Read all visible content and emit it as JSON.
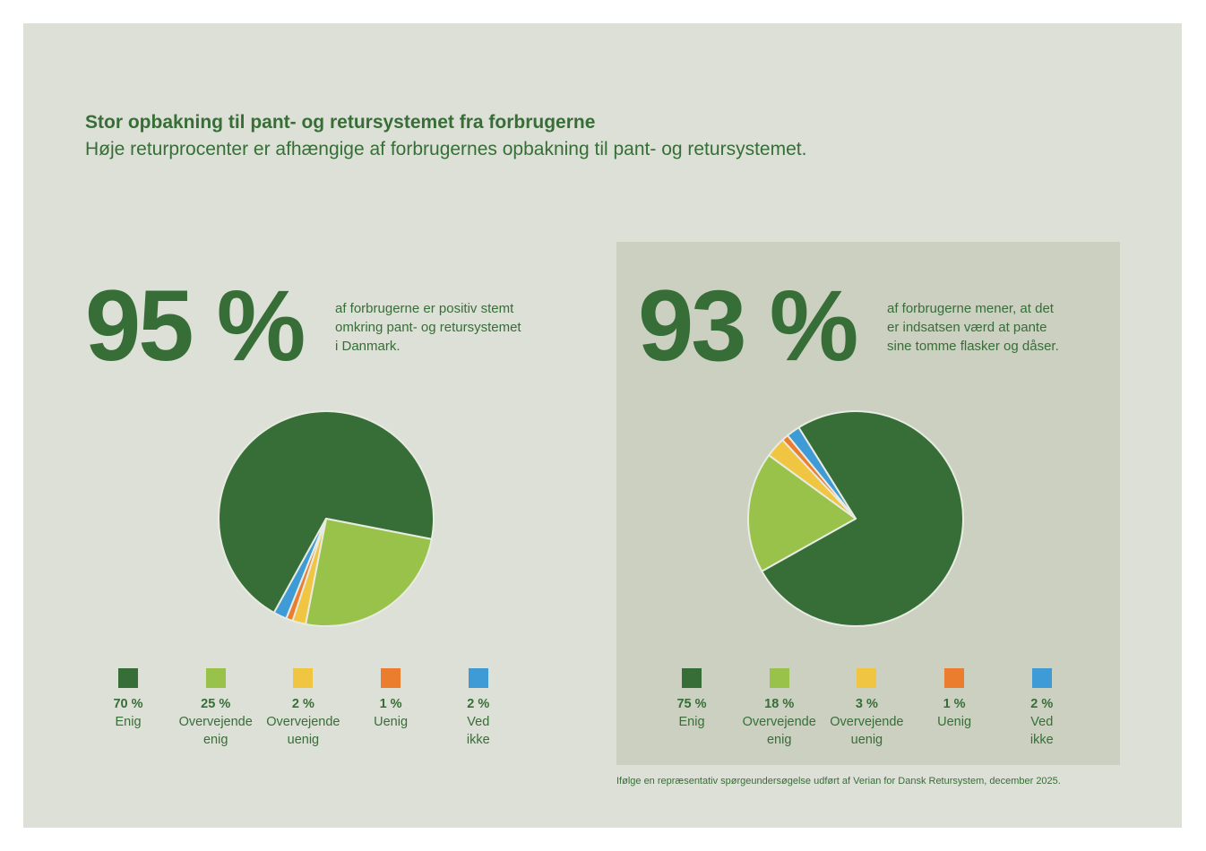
{
  "header": {
    "title": "Stor opbakning til pant- og retursystemet fra forbrugerne",
    "subtitle": "Høje returprocenter er afhængige af forbrugernes opbakning til pant- og retursystemet."
  },
  "colors": {
    "dark_green": "#376e37",
    "light_green": "#98c24a",
    "yellow": "#f0c542",
    "orange": "#ea7d2e",
    "blue": "#3f9bd5"
  },
  "footnote": "Ifølge en repræsentativ spørgeundersøgelse udført af Verian for Dansk Retursystem, december 2025.",
  "chart_data": [
    {
      "type": "pie",
      "headline": "95 %",
      "description": "af forbrugerne er positiv stemt\nomkring pant- og retursystemet\ni Danmark.",
      "slices": [
        {
          "pct_label": "70 %",
          "label": "Enig",
          "value": 70,
          "color": "#376e37"
        },
        {
          "pct_label": "25 %",
          "label": "Overvejende\nenig",
          "value": 25,
          "color": "#98c24a"
        },
        {
          "pct_label": "2 %",
          "label": "Overvejende\nuenig",
          "value": 2,
          "color": "#f0c542"
        },
        {
          "pct_label": "1 %",
          "label": "Uenig",
          "value": 1,
          "color": "#ea7d2e"
        },
        {
          "pct_label": "2 %",
          "label": "Ved\nikke",
          "value": 2,
          "color": "#3f9bd5"
        }
      ]
    },
    {
      "type": "pie",
      "headline": "93 %",
      "description": "af forbrugerne mener, at det\ner indsatsen værd at pante\nsine tomme flasker og dåser.",
      "slices": [
        {
          "pct_label": "75 %",
          "label": "Enig",
          "value": 75,
          "color": "#376e37"
        },
        {
          "pct_label": "18 %",
          "label": "Overvejende\nenig",
          "value": 18,
          "color": "#98c24a"
        },
        {
          "pct_label": "3 %",
          "label": "Overvejende\nuenig",
          "value": 3,
          "color": "#f0c542"
        },
        {
          "pct_label": "1 %",
          "label": "Uenig",
          "value": 1,
          "color": "#ea7d2e"
        },
        {
          "pct_label": "2 %",
          "label": "Ved\nikke",
          "value": 2,
          "color": "#3f9bd5"
        }
      ]
    }
  ]
}
